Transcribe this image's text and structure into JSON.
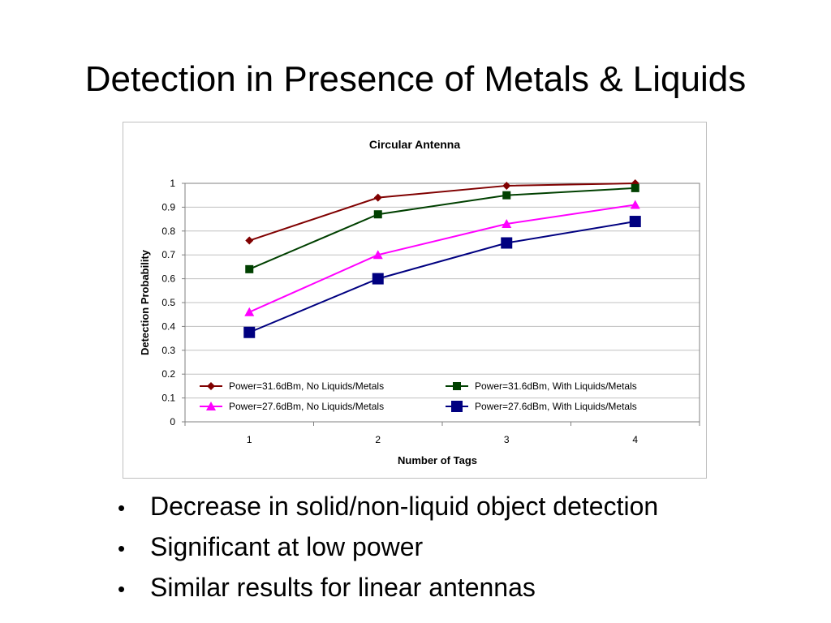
{
  "slide": {
    "title": "Detection in Presence of Metals & Liquids"
  },
  "bullets": [
    "Decrease in solid/non-liquid object detection",
    "Significant at low power",
    "Similar results for linear antennas"
  ],
  "chart_data": {
    "type": "line",
    "title": "Circular Antenna",
    "xlabel": "Number of Tags",
    "ylabel": "Detection Probability",
    "categories": [
      "1",
      "2",
      "3",
      "4"
    ],
    "ylim": [
      0,
      1
    ],
    "yticks": [
      "0",
      "0.1",
      "0.2",
      "0.3",
      "0.4",
      "0.5",
      "0.6",
      "0.7",
      "0.8",
      "0.9",
      "1"
    ],
    "grid": true,
    "legend_position": "inside-bottom",
    "series": [
      {
        "name": "Power=31.6dBm, No Liquids/Metals",
        "values": [
          0.76,
          0.94,
          0.99,
          1.0
        ],
        "color": "#800000",
        "marker": "diamond"
      },
      {
        "name": "Power=31.6dBm, With Liquids/Metals",
        "values": [
          0.64,
          0.87,
          0.95,
          0.98
        ],
        "color": "#004000",
        "marker": "square-small"
      },
      {
        "name": "Power=27.6dBm, No Liquids/Metals",
        "values": [
          0.46,
          0.7,
          0.83,
          0.91
        ],
        "color": "#ff00ff",
        "marker": "triangle"
      },
      {
        "name": "Power=27.6dBm, With Liquids/Metals",
        "values": [
          0.375,
          0.6,
          0.75,
          0.84
        ],
        "color": "#000080",
        "marker": "square-large"
      }
    ]
  }
}
